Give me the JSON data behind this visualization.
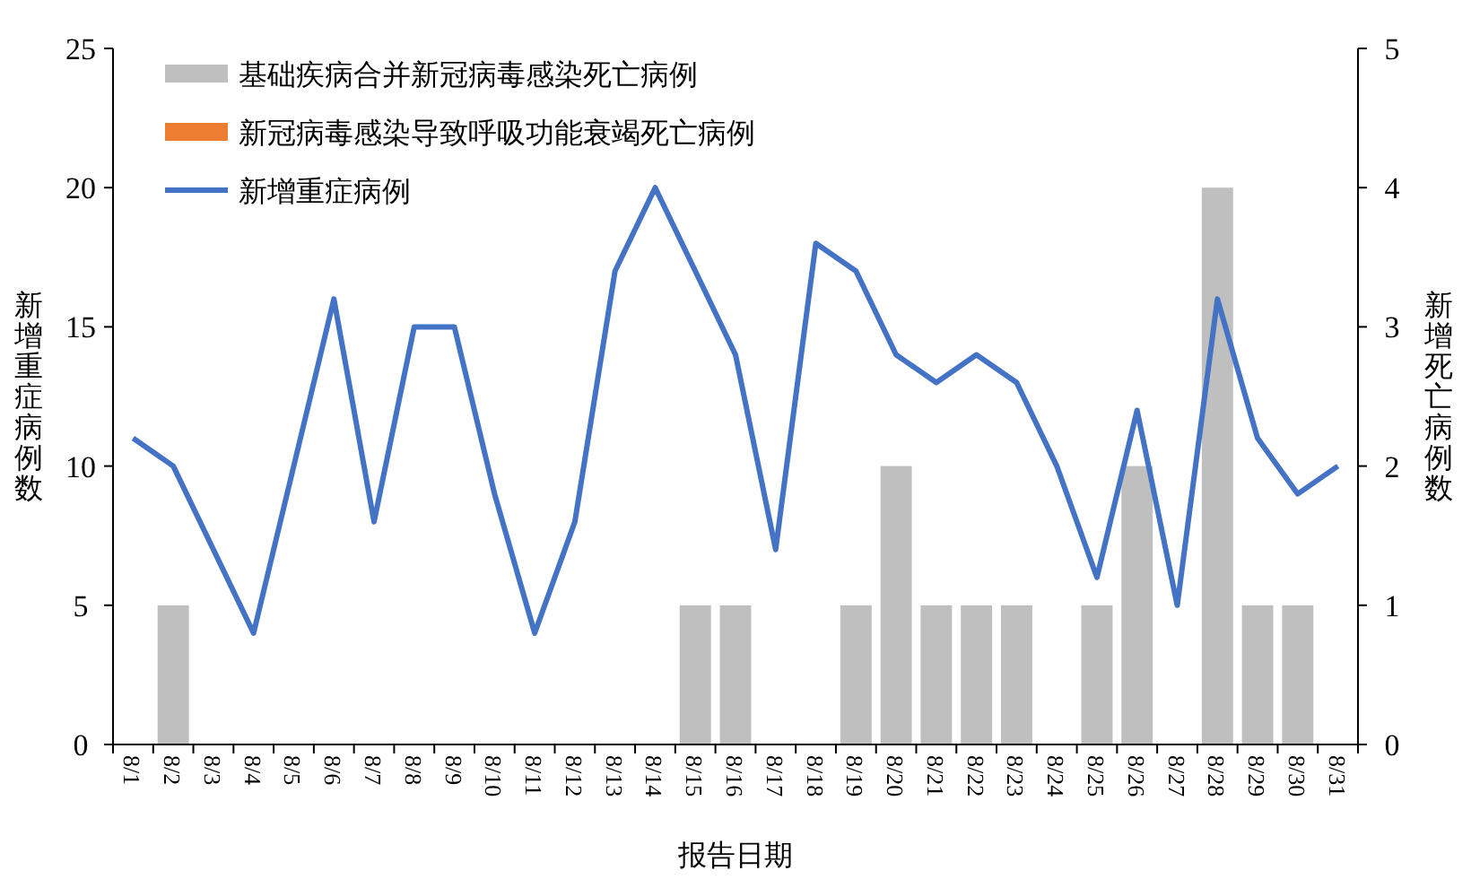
{
  "chart_data": {
    "type": "bar",
    "xlabel": "报告日期",
    "ylabel": "新增重症病例数",
    "y2label": "新增死亡病例数",
    "categories": [
      "8/1",
      "8/2",
      "8/3",
      "8/4",
      "8/5",
      "8/6",
      "8/7",
      "8/8",
      "8/9",
      "8/10",
      "8/11",
      "8/12",
      "8/13",
      "8/14",
      "8/15",
      "8/16",
      "8/17",
      "8/18",
      "8/19",
      "8/20",
      "8/21",
      "8/22",
      "8/23",
      "8/24",
      "8/25",
      "8/26",
      "8/27",
      "8/28",
      "8/29",
      "8/30",
      "8/31"
    ],
    "series": [
      {
        "name": "基础疾病合并新冠病毒感染死亡病例",
        "color": "#bfbfbf",
        "axis": "y2",
        "values": [
          0,
          1,
          0,
          0,
          0,
          0,
          0,
          0,
          0,
          0,
          0,
          0,
          0,
          0,
          1,
          1,
          0,
          0,
          1,
          2,
          1,
          1,
          1,
          0,
          1,
          2,
          0,
          4,
          1,
          1,
          0
        ]
      },
      {
        "name": "新冠病毒感染导致呼吸功能衰竭死亡病例",
        "color": "#ed7d31",
        "axis": "y2",
        "values": [
          0,
          0,
          0,
          0,
          0,
          0,
          0,
          0,
          0,
          0,
          0,
          0,
          0,
          0,
          0,
          0,
          0,
          0,
          0,
          0,
          0,
          0,
          0,
          0,
          0,
          0,
          0,
          0,
          0,
          0,
          0
        ]
      },
      {
        "name": "新增重症病例",
        "color": "#4472c4",
        "type": "line",
        "values": [
          11,
          10,
          7,
          4,
          10,
          16,
          8,
          15,
          15,
          9,
          4,
          8,
          17,
          20,
          17,
          14,
          7,
          18,
          17,
          14,
          13,
          14,
          13,
          10,
          6,
          12,
          5,
          16,
          11,
          9,
          10
        ]
      }
    ],
    "ylim": [
      0,
      25
    ],
    "yticks": [
      0,
      5,
      10,
      15,
      20,
      25
    ],
    "y2lim": [
      0,
      5
    ],
    "y2ticks": [
      0,
      1,
      2,
      3,
      4,
      5
    ],
    "grid": false,
    "legend": "top left",
    "marker": "none"
  }
}
